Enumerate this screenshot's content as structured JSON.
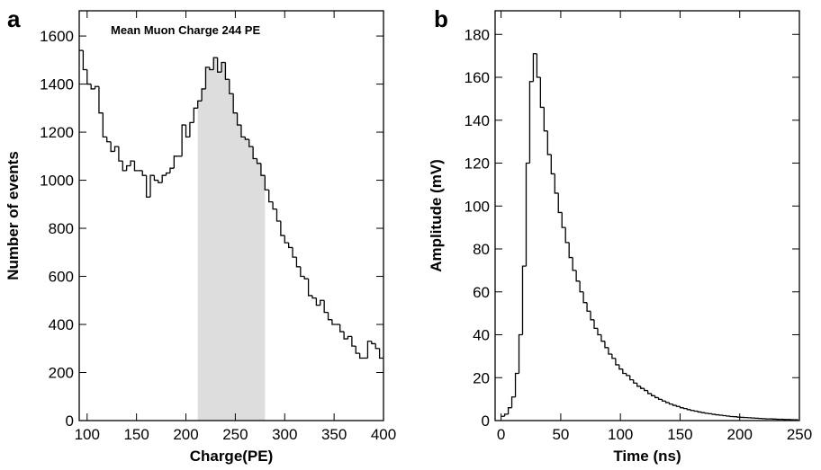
{
  "chart_data": [
    {
      "type": "histogram",
      "panel": "a",
      "annotation": "Mean Muon Charge 244 PE",
      "x_label": "Charge(PE)",
      "y_label": "Number of events",
      "xlim": [
        92,
        400
      ],
      "ylim": [
        0,
        1705
      ],
      "xticks": [
        100,
        150,
        200,
        250,
        300,
        350,
        400
      ],
      "yticks": [
        0,
        200,
        400,
        600,
        800,
        1000,
        1200,
        1400,
        1600
      ],
      "color": "#000000",
      "highlight": [
        212,
        280
      ],
      "highlight_color": "#dddddd",
      "bins": [
        92,
        96,
        100,
        104,
        108,
        112,
        116,
        120,
        124,
        128,
        132,
        136,
        140,
        144,
        148,
        152,
        156,
        160,
        164,
        168,
        172,
        176,
        180,
        184,
        188,
        192,
        196,
        200,
        204,
        208,
        212,
        216,
        220,
        224,
        228,
        232,
        236,
        240,
        244,
        248,
        252,
        256,
        260,
        264,
        268,
        272,
        276,
        280,
        284,
        288,
        292,
        296,
        300,
        304,
        308,
        312,
        316,
        320,
        324,
        328,
        332,
        336,
        340,
        344,
        348,
        352,
        356,
        360,
        364,
        368,
        372,
        376,
        380,
        384,
        388,
        392,
        396,
        400
      ],
      "values": [
        1540,
        1460,
        1400,
        1380,
        1390,
        1280,
        1180,
        1160,
        1120,
        1140,
        1080,
        1040,
        1060,
        1080,
        1040,
        1040,
        1020,
        930,
        1020,
        1000,
        990,
        1020,
        1030,
        1050,
        1100,
        1100,
        1230,
        1180,
        1240,
        1300,
        1330,
        1380,
        1470,
        1460,
        1510,
        1450,
        1490,
        1420,
        1360,
        1280,
        1230,
        1180,
        1170,
        1140,
        1090,
        1070,
        1020,
        960,
        910,
        880,
        830,
        770,
        740,
        720,
        680,
        640,
        600,
        590,
        520,
        510,
        480,
        500,
        450,
        420,
        400,
        400,
        370,
        340,
        350,
        310,
        280,
        260,
        260,
        330,
        320,
        300,
        260
      ]
    },
    {
      "type": "histogram",
      "panel": "b",
      "x_label": "Time (ns)",
      "y_label": "Amplitude (mV)",
      "xlim": [
        -5,
        250
      ],
      "ylim": [
        0,
        191
      ],
      "xticks": [
        0,
        50,
        100,
        150,
        200,
        250
      ],
      "yticks": [
        0,
        20,
        40,
        60,
        80,
        100,
        120,
        140,
        160,
        180
      ],
      "color": "#000000",
      "bins": [
        0,
        3,
        6,
        9,
        12,
        15,
        18,
        21,
        24,
        27,
        30,
        33,
        36,
        39,
        42,
        45,
        48,
        51,
        54,
        57,
        60,
        63,
        66,
        69,
        72,
        75,
        78,
        81,
        84,
        87,
        90,
        93,
        96,
        99,
        102,
        105,
        108,
        111,
        114,
        117,
        120,
        123,
        126,
        129,
        132,
        135,
        138,
        141,
        144,
        147,
        150,
        153,
        156,
        159,
        162,
        165,
        168,
        171,
        174,
        177,
        180,
        183,
        186,
        189,
        192,
        195,
        198,
        201,
        204,
        207,
        210,
        213,
        216,
        219,
        222,
        225,
        228,
        231,
        234,
        237,
        240,
        243,
        246,
        249
      ],
      "values": [
        2,
        3,
        6,
        11,
        22,
        40,
        72,
        120,
        158,
        171,
        160,
        146,
        135,
        124,
        115,
        106,
        97,
        90,
        83,
        76,
        70,
        65,
        60,
        55,
        51,
        47,
        43,
        40,
        37,
        34,
        31,
        29,
        26,
        24,
        22,
        21,
        19,
        17.5,
        16,
        15,
        14,
        12.6,
        11.6,
        10.7,
        9.9,
        9.1,
        8.4,
        7.7,
        7.1,
        6.6,
        6.0,
        5.6,
        5.1,
        4.7,
        4.4,
        4.0,
        3.7,
        3.4,
        3.2,
        2.9,
        2.7,
        2.5,
        2.3,
        2.1,
        1.9,
        1.8,
        1.6,
        1.5,
        1.4,
        1.3,
        1.2,
        1.1,
        1.0,
        0.9,
        0.8,
        0.8,
        0.7,
        0.6,
        0.6,
        0.5,
        0.5,
        0.4,
        0.4
      ]
    }
  ]
}
